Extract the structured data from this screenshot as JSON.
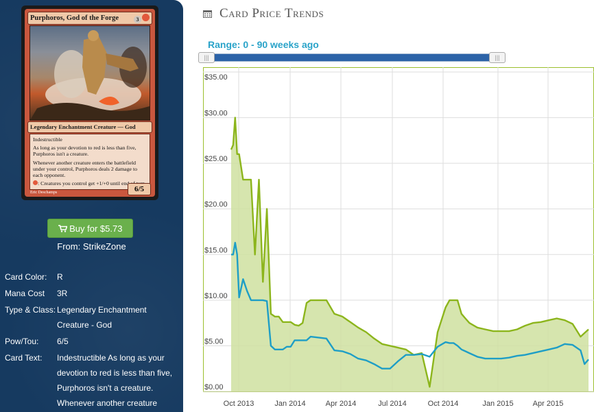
{
  "card": {
    "name": "Purphoros, God of the Forge",
    "mana_cost": "3",
    "type_line": "Legendary Enchantment Creature — God",
    "rules": [
      "Indestructible",
      "As long as your devotion to red is less than five, Purphoros isn't a creature.",
      "Whenever another creature enters the battlefield under your control, Purphoros deals 2 damage to each opponent.",
      ": Creatures you control get +1/+0 until end of turn."
    ],
    "pt": "6/5",
    "artist": "Eric Deschamps",
    "colors": {
      "frame": "#c9573e",
      "mana_red": "#e2593c"
    }
  },
  "buy": {
    "label": "Buy for $5.73",
    "icon": "cart-icon",
    "from": "From: StrikeZone"
  },
  "details": [
    {
      "label": "Card Color:",
      "value": "R"
    },
    {
      "label": "Mana Cost",
      "value": "3R"
    },
    {
      "label": "Type & Class:",
      "value": "Legendary Enchantment Creature - God"
    },
    {
      "label": "Pow/Tou:",
      "value": "6/5"
    },
    {
      "label": "Card Text:",
      "value": "Indestructible As long as your devotion to red is less than five, Purphoros isn't a creature. Whenever another creature"
    }
  ],
  "header": {
    "title": "Card Price Trends",
    "icon": "calendar-icon"
  },
  "range": {
    "label": "Range: 0 - 90 weeks ago",
    "min": 0,
    "max": 90
  },
  "colors": {
    "accent": "#2aa3c9",
    "slider": "#2c63a8",
    "button": "#6ab04c",
    "sidebar": "#163a60"
  },
  "chart_data": {
    "type": "area",
    "yticks": [
      "$0.00",
      "$5.00",
      "$10.00",
      "$15.00",
      "$20.00",
      "$25.00",
      "$30.00",
      "$35.00"
    ],
    "ylim": [
      0,
      35
    ],
    "xticks": [
      "Oct 2013",
      "Jan 2014",
      "Apr 2014",
      "Jul 2014",
      "Oct 2014",
      "Jan 2015",
      "Apr 2015"
    ],
    "grid": true,
    "series": [
      {
        "color": "#8cb51c",
        "fill": "#cfe0a0",
        "x": [
          0,
          0.5,
          1,
          1.5,
          2,
          3,
          4,
          5,
          6,
          7,
          8,
          9,
          10,
          11,
          12,
          13,
          14,
          15,
          16,
          17,
          18,
          19,
          20,
          22,
          24,
          26,
          28,
          30,
          32,
          34,
          36,
          38,
          40,
          42,
          44,
          46,
          48,
          50,
          52,
          54,
          55,
          56,
          57,
          58,
          59,
          60,
          62,
          64,
          66,
          68,
          70,
          72,
          74,
          76,
          78,
          80,
          82,
          84,
          86,
          88,
          89,
          90
        ],
        "y": [
          26.5,
          27,
          30,
          26,
          26,
          23.2,
          23.2,
          23.2,
          15,
          23.2,
          12,
          20,
          8.5,
          8.2,
          8.2,
          7.6,
          7.6,
          7.6,
          7.3,
          7.2,
          7.5,
          9.7,
          10,
          10,
          10,
          8.5,
          8.2,
          7.6,
          7,
          6.5,
          5.8,
          5.2,
          5,
          4.8,
          4.6,
          4,
          4.2,
          0.5,
          6.5,
          9.2,
          10,
          10,
          10,
          8.5,
          8,
          7.5,
          7,
          6.8,
          6.6,
          6.6,
          6.6,
          6.8,
          7.2,
          7.5,
          7.6,
          7.8,
          8,
          7.8,
          7.4,
          6,
          6.4,
          6.8
        ]
      },
      {
        "color": "#1e9ec6",
        "x": [
          0,
          0.5,
          1,
          1.5,
          2,
          3,
          4,
          5,
          6,
          7,
          8,
          9,
          10,
          11,
          12,
          13,
          14,
          15,
          16,
          17,
          18,
          19,
          20,
          22,
          24,
          26,
          28,
          30,
          32,
          34,
          36,
          38,
          40,
          42,
          44,
          46,
          48,
          50,
          52,
          54,
          55,
          56,
          57,
          58,
          59,
          60,
          62,
          64,
          66,
          68,
          70,
          72,
          74,
          76,
          78,
          80,
          82,
          84,
          86,
          88,
          89,
          90
        ],
        "y": [
          15,
          15,
          16.3,
          15,
          10.3,
          12.3,
          11,
          10,
          10,
          10,
          10,
          9.9,
          5,
          4.6,
          4.6,
          4.6,
          4.9,
          4.9,
          5.6,
          5.6,
          5.6,
          5.6,
          6,
          5.9,
          5.8,
          4.5,
          4.4,
          4.1,
          3.6,
          3.4,
          3,
          2.5,
          2.5,
          3.3,
          4,
          4,
          4.1,
          3.8,
          4.9,
          5.4,
          5.3,
          5.3,
          5,
          4.6,
          4.4,
          4.2,
          3.8,
          3.6,
          3.6,
          3.6,
          3.7,
          3.9,
          4,
          4.2,
          4.4,
          4.6,
          4.8,
          5.2,
          5.1,
          4.5,
          3,
          3.5
        ]
      }
    ]
  }
}
